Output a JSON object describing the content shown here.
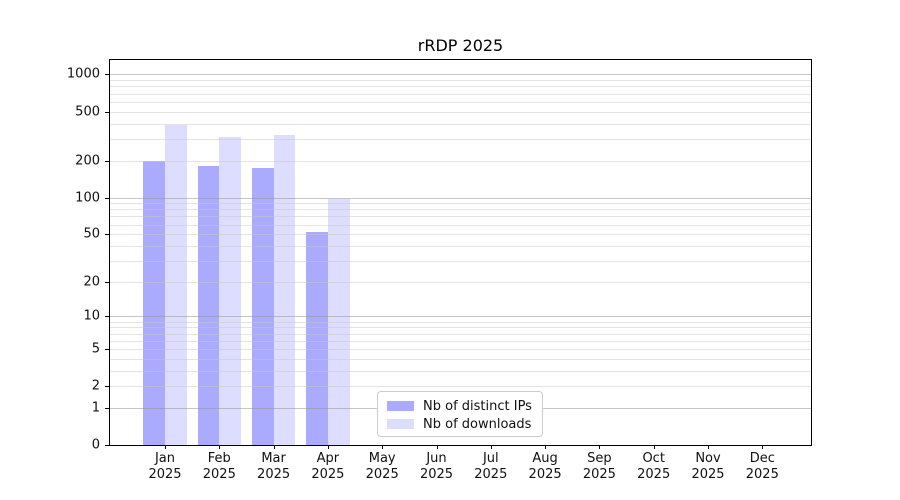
{
  "title": "rRDP 2025",
  "chart_data": {
    "type": "bar",
    "title": "rRDP 2025",
    "y_scale": "log10(1+v)",
    "xlabel": "",
    "ylabel": "",
    "year": "2025",
    "categories": [
      "Jan",
      "Feb",
      "Mar",
      "Apr",
      "May",
      "Jun",
      "Jul",
      "Aug",
      "Sep",
      "Oct",
      "Nov",
      "Dec"
    ],
    "series": [
      {
        "name": "Nb of distinct IPs",
        "color": "#aaaaff",
        "values": [
          198,
          180,
          173,
          52,
          0,
          0,
          0,
          0,
          0,
          0,
          0,
          0
        ]
      },
      {
        "name": "Nb of downloads",
        "color": "#ddddff",
        "values": [
          386,
          314,
          320,
          97,
          0,
          0,
          0,
          0,
          0,
          0,
          0,
          0
        ]
      }
    ],
    "yticks": [
      0,
      1,
      2,
      5,
      10,
      20,
      50,
      100,
      200,
      500,
      1000
    ],
    "ylim": [
      0,
      1300
    ],
    "grid": "both-horizontal",
    "legend_position": "lower-center-left"
  },
  "colors": {
    "grid_major": "#c5c5c5",
    "grid_minor": "#e3e3e3",
    "axis": "#000000",
    "background": "#ffffff"
  }
}
